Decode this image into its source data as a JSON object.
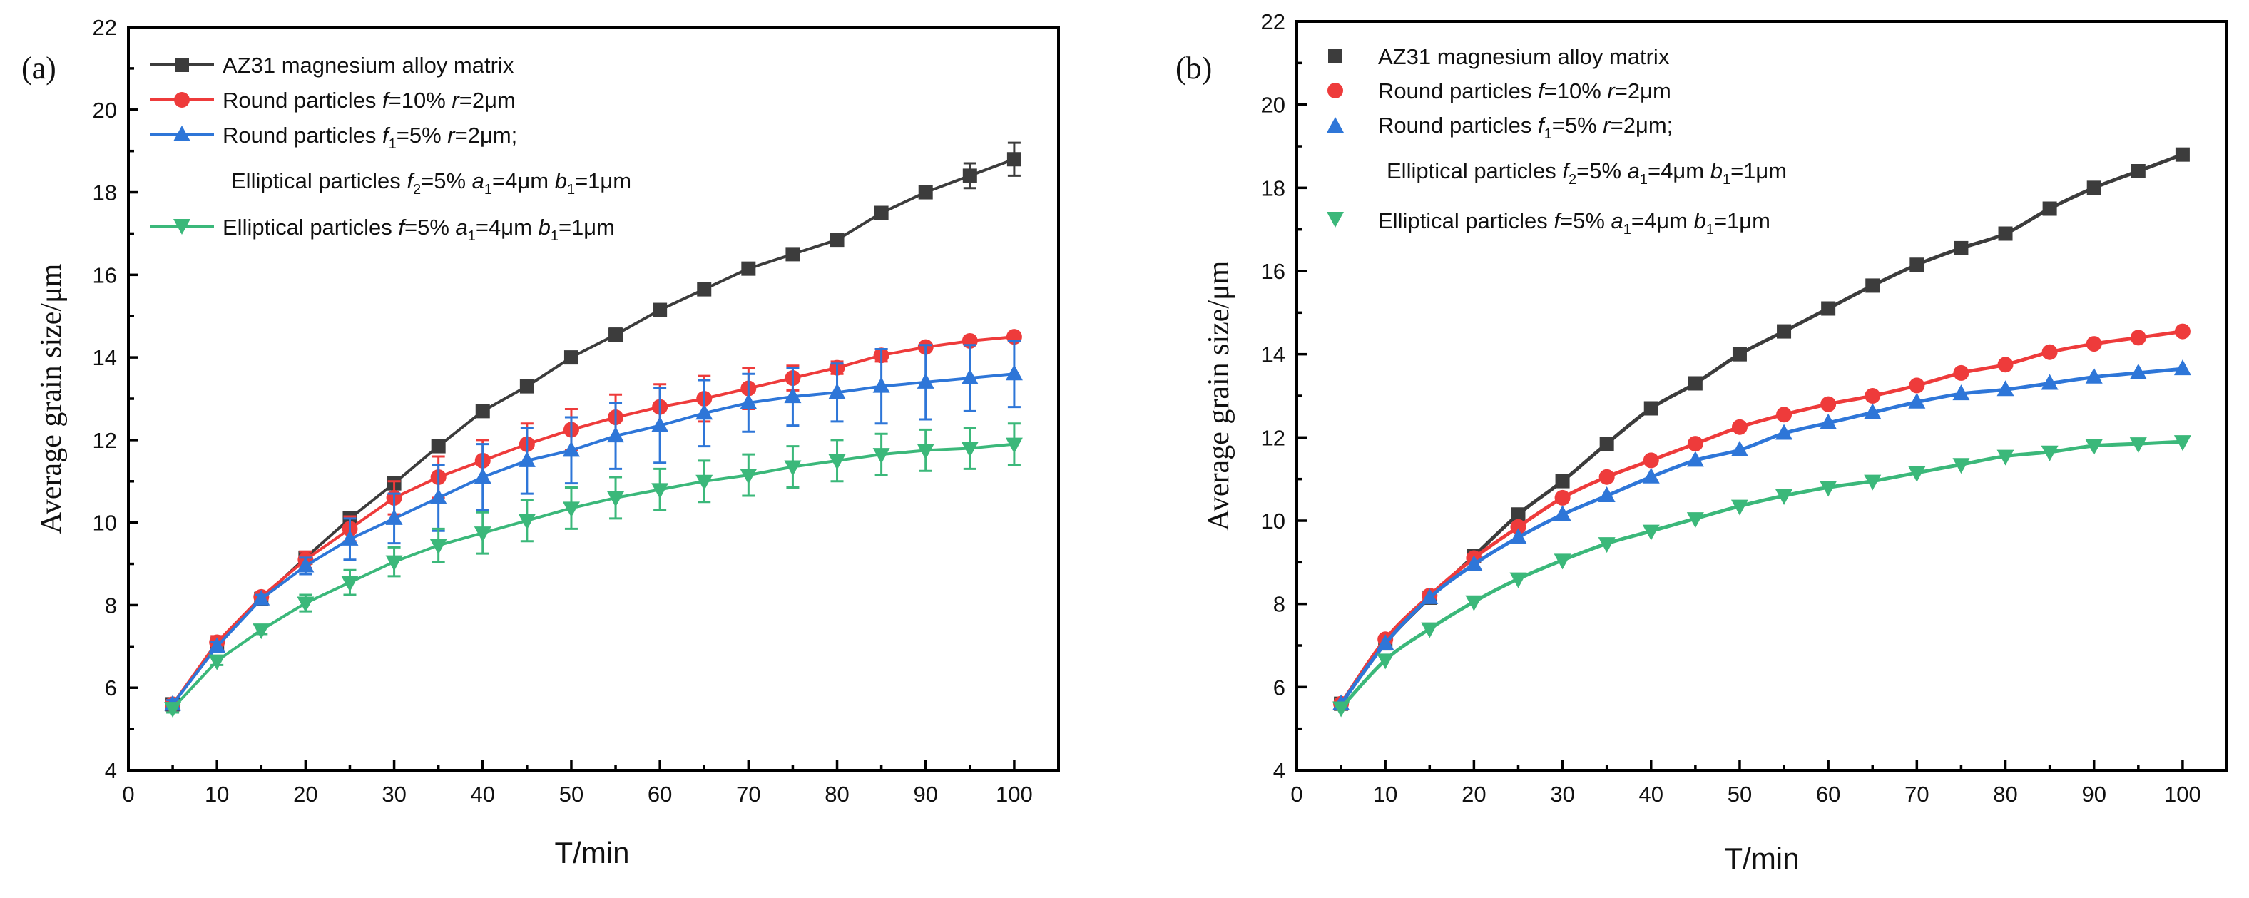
{
  "colors": {
    "matrix": "#3c3c3c",
    "round10": "#ee3b3b",
    "mixed": "#2e76d8",
    "ell5": "#3bb87a"
  },
  "chart_data": [
    {
      "type": "line",
      "panel_label": "(a)",
      "xlabel": "T/min",
      "ylabel": "Average grain size/μm",
      "xlim": [
        0,
        105
      ],
      "ylim": [
        4,
        22
      ],
      "xticks": [
        0,
        10,
        20,
        30,
        40,
        50,
        60,
        70,
        80,
        90,
        100
      ],
      "yticks": [
        4,
        6,
        8,
        10,
        12,
        14,
        16,
        18,
        20,
        22
      ],
      "x": [
        5,
        10,
        15,
        20,
        25,
        30,
        35,
        40,
        45,
        50,
        55,
        60,
        65,
        70,
        75,
        80,
        85,
        90,
        95,
        100
      ],
      "series": [
        {
          "key": "matrix",
          "marker": "square",
          "name": "AZ31 magnesium alloy matrix",
          "values": [
            5.6,
            7.05,
            8.15,
            9.15,
            10.1,
            10.95,
            11.85,
            12.7,
            13.3,
            14.0,
            14.55,
            15.15,
            15.65,
            16.15,
            16.5,
            16.85,
            17.5,
            18.0,
            18.4,
            18.8
          ],
          "errors": [
            0.05,
            0.05,
            0.05,
            0.05,
            0.05,
            0.05,
            0.05,
            0.05,
            0.05,
            0.05,
            0.15,
            0.1,
            0.1,
            0.1,
            0.1,
            0.1,
            0.05,
            0.1,
            0.3,
            0.4
          ]
        },
        {
          "key": "round10",
          "marker": "circle",
          "name": "Round particles f=10% r=2μm",
          "values": [
            5.6,
            7.1,
            8.2,
            9.1,
            9.85,
            10.6,
            11.1,
            11.5,
            11.9,
            12.25,
            12.55,
            12.8,
            13.0,
            13.25,
            13.5,
            13.75,
            14.05,
            14.25,
            14.4,
            14.5
          ],
          "errors": [
            0.1,
            0.15,
            0.1,
            0.2,
            0.3,
            0.4,
            0.5,
            0.5,
            0.5,
            0.5,
            0.55,
            0.55,
            0.55,
            0.5,
            0.3,
            0.15,
            0.15,
            0.1,
            0.1,
            0.1
          ]
        },
        {
          "key": "mixed",
          "marker": "triangle-up",
          "name": "Round particles f1=5% r=2μm; Elliptical particles f2=5% a1=4μm b1=1μm",
          "values": [
            5.6,
            7.0,
            8.15,
            8.95,
            9.6,
            10.1,
            10.6,
            11.1,
            11.5,
            11.75,
            12.1,
            12.35,
            12.65,
            12.9,
            13.05,
            13.15,
            13.3,
            13.4,
            13.5,
            13.6
          ],
          "errors": [
            0.1,
            0.1,
            0.1,
            0.2,
            0.5,
            0.6,
            0.8,
            0.8,
            0.8,
            0.8,
            0.8,
            0.9,
            0.8,
            0.7,
            0.7,
            0.7,
            0.9,
            0.9,
            0.8,
            0.8
          ]
        },
        {
          "key": "ell5",
          "marker": "triangle-down",
          "name": "Elliptical particles f=5% a1=4μm b1=1μm",
          "values": [
            5.5,
            6.65,
            7.4,
            8.05,
            8.55,
            9.05,
            9.45,
            9.75,
            10.05,
            10.35,
            10.6,
            10.8,
            11.0,
            11.15,
            11.35,
            11.5,
            11.65,
            11.75,
            11.8,
            11.9
          ],
          "errors": [
            0.1,
            0.1,
            0.1,
            0.2,
            0.3,
            0.35,
            0.4,
            0.5,
            0.5,
            0.5,
            0.5,
            0.5,
            0.5,
            0.5,
            0.5,
            0.5,
            0.5,
            0.5,
            0.5,
            0.5
          ]
        }
      ]
    },
    {
      "type": "scatter",
      "panel_label": "(b)",
      "xlabel": "T/min",
      "ylabel": "Average grain size/μm",
      "xlim": [
        0,
        105
      ],
      "ylim": [
        4,
        22
      ],
      "xticks": [
        0,
        10,
        20,
        30,
        40,
        50,
        60,
        70,
        80,
        90,
        100
      ],
      "yticks": [
        4,
        6,
        8,
        10,
        12,
        14,
        16,
        18,
        20,
        22
      ],
      "x": [
        5,
        10,
        15,
        20,
        25,
        30,
        35,
        40,
        45,
        50,
        55,
        60,
        65,
        70,
        75,
        80,
        85,
        90,
        95,
        100
      ],
      "fit_lines": true,
      "series": [
        {
          "key": "matrix",
          "marker": "square",
          "name": "AZ31 magnesium alloy matrix",
          "values": [
            5.6,
            7.05,
            8.15,
            9.15,
            10.15,
            10.95,
            11.85,
            12.7,
            13.3,
            14.0,
            14.55,
            15.1,
            15.65,
            16.15,
            16.55,
            16.9,
            17.5,
            18.0,
            18.4,
            18.8
          ]
        },
        {
          "key": "round10",
          "marker": "circle",
          "name": "Round particles f=10% r=2μm",
          "values": [
            5.6,
            7.15,
            8.2,
            9.1,
            9.85,
            10.55,
            11.05,
            11.45,
            11.85,
            12.25,
            12.55,
            12.8,
            13.0,
            13.25,
            13.55,
            13.75,
            14.05,
            14.25,
            14.4,
            14.55
          ]
        },
        {
          "key": "mixed",
          "marker": "triangle-up",
          "name": "Round particles f1=5% r=2μm; Elliptical particles f2=5% a1=4μm b1=1μm",
          "values": [
            5.6,
            7.05,
            8.15,
            8.95,
            9.6,
            10.15,
            10.6,
            11.05,
            11.45,
            11.7,
            12.1,
            12.35,
            12.6,
            12.85,
            13.05,
            13.15,
            13.3,
            13.45,
            13.55,
            13.65
          ]
        },
        {
          "key": "ell5",
          "marker": "triangle-down",
          "name": "Elliptical particles f=5% a1=4μm b1=1μm",
          "values": [
            5.5,
            6.65,
            7.4,
            8.05,
            8.6,
            9.05,
            9.45,
            9.75,
            10.05,
            10.35,
            10.6,
            10.8,
            10.95,
            11.15,
            11.35,
            11.55,
            11.65,
            11.8,
            11.85,
            11.9
          ]
        }
      ]
    }
  ],
  "legend_a": {
    "row1": "AZ31 magnesium alloy matrix",
    "row2": {
      "pre": "Round particles ",
      "f": "f",
      "fval": "=10% ",
      "r": "r",
      "rval": "=2μm"
    },
    "row3": {
      "pre": "Round particles ",
      "f": "f",
      "fsub": "1",
      "fval": "=5% ",
      "r": "r",
      "rval": "=2μm;"
    },
    "row4": {
      "pre": "Elliptical particles ",
      "f": "f",
      "fsub": "2",
      "fval": "=5% ",
      "a": "a",
      "asub": "1",
      "aval": "=4μm ",
      "b": "b",
      "bsub": "1",
      "bval": "=1μm"
    },
    "row5": {
      "pre": "Elliptical particles ",
      "f": "f",
      "fval": "=5% ",
      "a": "a",
      "asub": "1",
      "aval": "=4μm ",
      "b": "b",
      "bsub": "1",
      "bval": "=1μm"
    }
  },
  "legend_b": {
    "row1": "AZ31 magnesium alloy matrix",
    "row2": {
      "pre": "Round particles ",
      "f": "f",
      "fval": "=10% ",
      "r": "r",
      "rval": "=2μm"
    },
    "row3": {
      "pre": "Round particles ",
      "f": "f",
      "fsub": "1",
      "fval": "=5% ",
      "r": "r",
      "rval": "=2μm;"
    },
    "row4": {
      "pre": "Elliptical particles ",
      "f": "f",
      "fsub": "2",
      "fval": "=5% ",
      "a": "a",
      "asub": "1",
      "aval": "=4μm ",
      "b": "b",
      "bsub": "1",
      "bval": "=1μm"
    },
    "row5": {
      "pre": "Elliptical particles ",
      "f": "f",
      "fval": "=5% ",
      "a": "a",
      "asub": "1",
      "aval": "=4μm ",
      "b": "b",
      "bsub": "1",
      "bval": "=1μm"
    }
  }
}
